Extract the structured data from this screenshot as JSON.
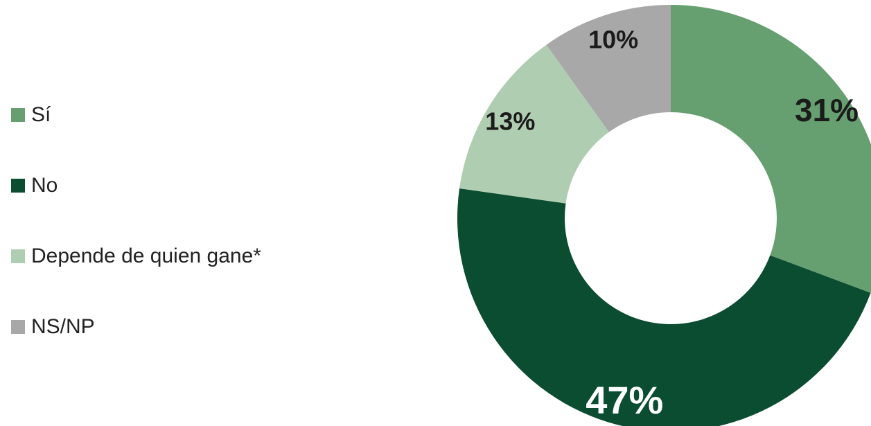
{
  "chart_data": {
    "type": "pie",
    "donut": true,
    "legend_position": "left",
    "slices": [
      {
        "label": "Sí",
        "value": 31,
        "display": "31%",
        "color": "#67a070",
        "label_color": "#1b1b1b"
      },
      {
        "label": "No",
        "value": 47,
        "display": "47%",
        "color": "#0b4d31",
        "label_color": "#ffffff"
      },
      {
        "label": "Depende de quien gane*",
        "value": 13,
        "display": "13%",
        "color": "#afcdb0",
        "label_color": "#1b1b1b"
      },
      {
        "label": "NS/NP",
        "value": 10,
        "display": "10%",
        "color": "#a8a8a8",
        "label_color": "#1b1b1b"
      }
    ]
  }
}
